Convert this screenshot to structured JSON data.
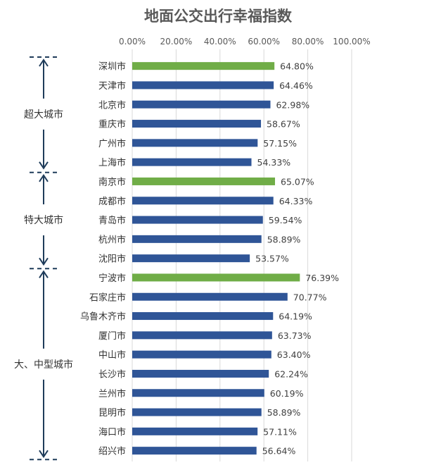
{
  "chart_data": {
    "type": "bar",
    "orientation": "horizontal",
    "title": "地面公交出行幸福指数",
    "xlim": [
      0,
      100
    ],
    "x_ticks": [
      "0.00%",
      "20.00%",
      "40.00%",
      "60.00%",
      "80.00%",
      "100.00%"
    ],
    "grid": true,
    "categories": [
      "深圳市",
      "天津市",
      "北京市",
      "重庆市",
      "广州市",
      "上海市",
      "南京市",
      "成都市",
      "青岛市",
      "杭州市",
      "沈阳市",
      "宁波市",
      "石家庄市",
      "乌鲁木齐市",
      "厦门市",
      "中山市",
      "长沙市",
      "兰州市",
      "昆明市",
      "海口市",
      "绍兴市"
    ],
    "values": [
      64.8,
      64.46,
      62.98,
      58.67,
      57.15,
      54.33,
      65.07,
      64.33,
      59.54,
      58.89,
      53.57,
      76.39,
      70.77,
      64.19,
      63.73,
      63.4,
      62.24,
      60.19,
      58.89,
      57.11,
      56.64
    ],
    "value_labels": [
      "64.80%",
      "64.46%",
      "62.98%",
      "58.67%",
      "57.15%",
      "54.33%",
      "65.07%",
      "64.33%",
      "59.54%",
      "58.89%",
      "53.57%",
      "76.39%",
      "70.77%",
      "64.19%",
      "63.73%",
      "63.40%",
      "62.24%",
      "60.19%",
      "58.89%",
      "57.11%",
      "56.64%"
    ],
    "highlighted": [
      "深圳市",
      "南京市",
      "宁波市"
    ],
    "colors": {
      "bar": "#2f5597",
      "highlight": "#70ad47",
      "bracket": "#1f3c5a"
    },
    "groups": [
      {
        "label": "超大城市",
        "first": 0,
        "last": 5
      },
      {
        "label": "特大城市",
        "first": 6,
        "last": 10
      },
      {
        "label": "大、中型城市",
        "first": 11,
        "last": 20
      }
    ]
  }
}
